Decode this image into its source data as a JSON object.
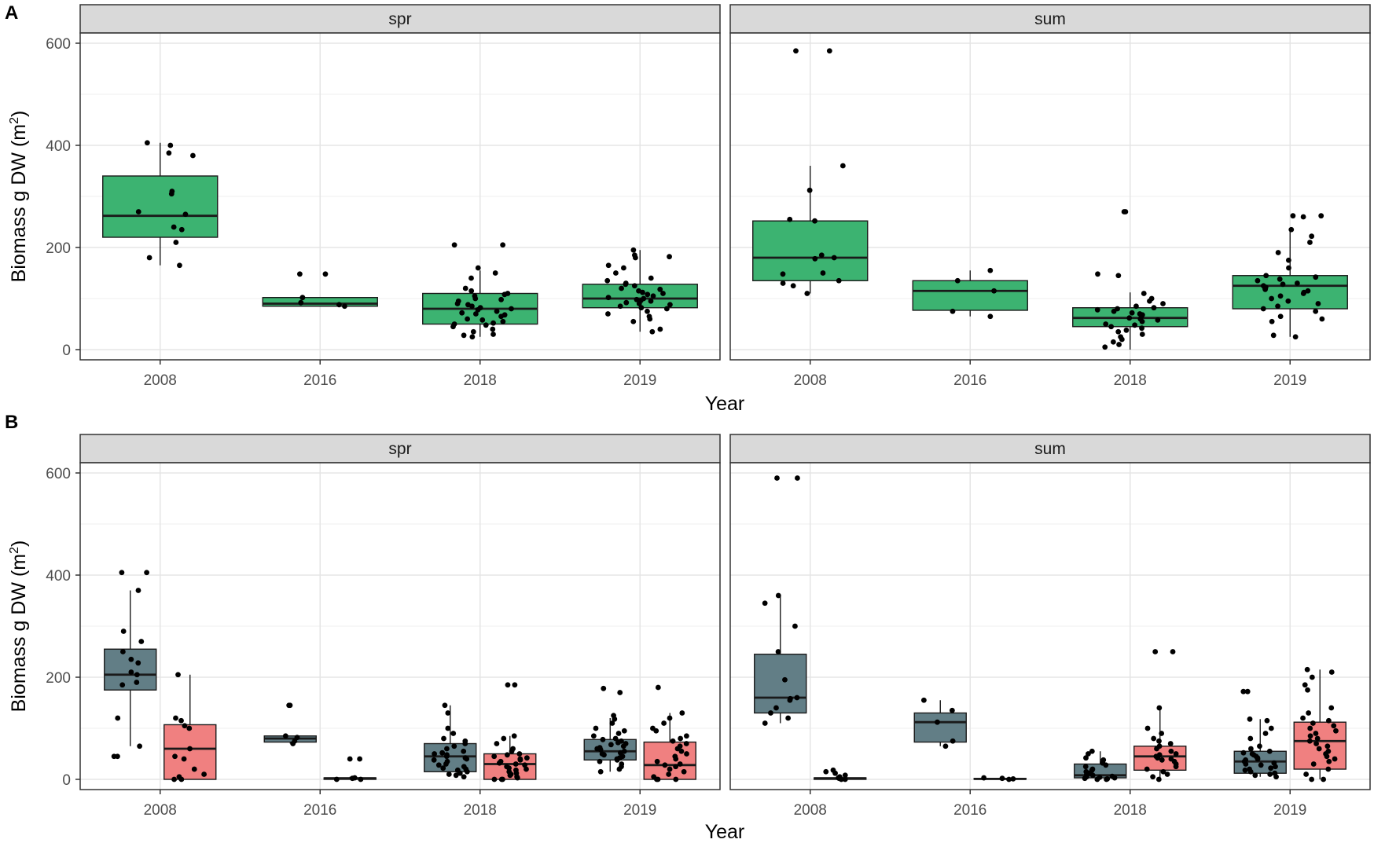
{
  "colors": {
    "total": "#3cb371",
    "group1": "#627e86",
    "group2": "#f08080",
    "grid_major": "#e5e5e5",
    "grid_minor": "#f2f2f2",
    "strip_fill": "#d9d9d9"
  },
  "chart_data": [
    {
      "panel": "A",
      "type": "box",
      "xlabel": "Year",
      "ylabel_main": "Biomass g DW (m",
      "ylabel_sup": "2",
      "ylabel_end": ")",
      "ylim": [
        -20,
        620
      ],
      "yticks": [
        0,
        200,
        400,
        600
      ],
      "categories": [
        "2008",
        "2016",
        "2018",
        "2019"
      ],
      "facets": [
        {
          "label": "spr",
          "groups": [
            {
              "series": "total",
              "boxes": [
                {
                  "x": "2008",
                  "min": 165,
                  "q1": 220,
                  "median": 262,
                  "q3": 340,
                  "max": 405,
                  "points": [
                    400,
                    405,
                    385,
                    380,
                    310,
                    305,
                    270,
                    265,
                    240,
                    235,
                    210,
                    180,
                    165
                  ]
                },
                {
                  "x": "2016",
                  "min": 85,
                  "q1": 85,
                  "median": 90,
                  "q3": 102,
                  "max": 102,
                  "points": [
                    148,
                    148,
                    102,
                    92,
                    88,
                    85
                  ]
                },
                {
                  "x": "2018",
                  "min": 25,
                  "q1": 50,
                  "median": 80,
                  "q3": 110,
                  "max": 155,
                  "points": [
                    205,
                    205,
                    160,
                    150,
                    140,
                    120,
                    115,
                    110,
                    108,
                    105,
                    100,
                    98,
                    95,
                    90,
                    88,
                    85,
                    82,
                    80,
                    78,
                    75,
                    72,
                    70,
                    68,
                    65,
                    60,
                    58,
                    55,
                    52,
                    50,
                    48,
                    45,
                    40,
                    35,
                    30,
                    28,
                    25
                  ]
                },
                {
                  "x": "2019",
                  "min": 35,
                  "q1": 82,
                  "median": 100,
                  "q3": 128,
                  "max": 195,
                  "points": [
                    195,
                    185,
                    182,
                    180,
                    165,
                    160,
                    150,
                    140,
                    135,
                    130,
                    128,
                    125,
                    120,
                    118,
                    115,
                    112,
                    110,
                    108,
                    105,
                    102,
                    100,
                    98,
                    96,
                    95,
                    92,
                    90,
                    88,
                    85,
                    82,
                    80,
                    75,
                    70,
                    65,
                    60,
                    55,
                    40,
                    35
                  ]
                }
              ]
            }
          ]
        },
        {
          "label": "sum",
          "groups": [
            {
              "series": "total",
              "boxes": [
                {
                  "x": "2008",
                  "min": 110,
                  "q1": 135,
                  "median": 180,
                  "q3": 252,
                  "max": 360,
                  "points": [
                    585,
                    585,
                    360,
                    312,
                    255,
                    252,
                    185,
                    180,
                    178,
                    150,
                    148,
                    135,
                    130,
                    125,
                    110
                  ]
                },
                {
                  "x": "2016",
                  "min": 65,
                  "q1": 77,
                  "median": 115,
                  "q3": 135,
                  "max": 155,
                  "points": [
                    155,
                    135,
                    115,
                    75,
                    65
                  ]
                },
                {
                  "x": "2018",
                  "min": 0,
                  "q1": 45,
                  "median": 62,
                  "q3": 82,
                  "max": 112,
                  "points": [
                    270,
                    270,
                    148,
                    145,
                    110,
                    100,
                    95,
                    90,
                    85,
                    82,
                    80,
                    78,
                    75,
                    72,
                    70,
                    68,
                    65,
                    62,
                    60,
                    58,
                    55,
                    50,
                    48,
                    45,
                    42,
                    38,
                    35,
                    30,
                    25,
                    20,
                    15,
                    10,
                    5
                  ]
                },
                {
                  "x": "2019",
                  "min": 25,
                  "q1": 80,
                  "median": 125,
                  "q3": 145,
                  "max": 232,
                  "points": [
                    262,
                    262,
                    260,
                    235,
                    222,
                    210,
                    190,
                    175,
                    160,
                    145,
                    142,
                    138,
                    135,
                    130,
                    128,
                    125,
                    122,
                    120,
                    118,
                    115,
                    112,
                    110,
                    105,
                    100,
                    95,
                    90,
                    85,
                    80,
                    75,
                    65,
                    60,
                    55,
                    28,
                    25
                  ]
                }
              ]
            }
          ]
        }
      ]
    },
    {
      "panel": "B",
      "type": "box",
      "xlabel": "Year",
      "ylabel_main": "Biomass g DW (m",
      "ylabel_sup": "2",
      "ylabel_end": ")",
      "ylim": [
        -20,
        620
      ],
      "yticks": [
        0,
        200,
        400,
        600
      ],
      "categories": [
        "2008",
        "2016",
        "2018",
        "2019"
      ],
      "facets": [
        {
          "label": "spr",
          "groups": [
            {
              "series": "group1",
              "boxes": [
                {
                  "x": "2008",
                  "min": 65,
                  "q1": 175,
                  "median": 205,
                  "q3": 255,
                  "max": 370,
                  "points": [
                    405,
                    405,
                    370,
                    290,
                    270,
                    250,
                    235,
                    228,
                    210,
                    205,
                    190,
                    185,
                    120,
                    65,
                    45,
                    45
                  ]
                },
                {
                  "x": "2016",
                  "min": 70,
                  "q1": 73,
                  "median": 80,
                  "q3": 85,
                  "max": 85,
                  "points": [
                    145,
                    145,
                    85,
                    82,
                    75,
                    70
                  ]
                },
                {
                  "x": "2018",
                  "min": 10,
                  "q1": 15,
                  "median": 45,
                  "q3": 70,
                  "max": 145,
                  "points": [
                    145,
                    130,
                    100,
                    90,
                    80,
                    75,
                    70,
                    65,
                    60,
                    55,
                    52,
                    50,
                    48,
                    45,
                    42,
                    40,
                    38,
                    35,
                    30,
                    28,
                    25,
                    22,
                    20,
                    18,
                    15,
                    12,
                    10,
                    8,
                    5
                  ]
                },
                {
                  "x": "2019",
                  "min": 15,
                  "q1": 38,
                  "median": 55,
                  "q3": 78,
                  "max": 120,
                  "points": [
                    178,
                    170,
                    125,
                    118,
                    110,
                    100,
                    95,
                    90,
                    85,
                    80,
                    78,
                    75,
                    72,
                    70,
                    68,
                    65,
                    62,
                    60,
                    58,
                    55,
                    52,
                    50,
                    48,
                    45,
                    42,
                    40,
                    38,
                    35,
                    30,
                    25,
                    20,
                    15
                  ]
                }
              ]
            },
            {
              "series": "group2",
              "boxes": [
                {
                  "x": "2008",
                  "min": 0,
                  "q1": 0,
                  "median": 60,
                  "q3": 107,
                  "max": 205,
                  "points": [
                    205,
                    120,
                    115,
                    105,
                    100,
                    60,
                    45,
                    40,
                    20,
                    10,
                    5,
                    0,
                    0
                  ]
                },
                {
                  "x": "2016",
                  "min": 0,
                  "q1": 0,
                  "median": 2,
                  "q3": 3,
                  "max": 5,
                  "points": [
                    40,
                    40,
                    3,
                    2,
                    0,
                    0
                  ]
                },
                {
                  "x": "2018",
                  "min": 0,
                  "q1": 0,
                  "median": 30,
                  "q3": 50,
                  "max": 85,
                  "points": [
                    185,
                    185,
                    85,
                    80,
                    70,
                    60,
                    55,
                    50,
                    48,
                    45,
                    42,
                    40,
                    38,
                    35,
                    32,
                    30,
                    28,
                    25,
                    22,
                    20,
                    18,
                    15,
                    12,
                    10,
                    8,
                    5,
                    3,
                    0,
                    0,
                    0
                  ]
                },
                {
                  "x": "2019",
                  "min": 0,
                  "q1": 0,
                  "median": 28,
                  "q3": 73,
                  "max": 130,
                  "points": [
                    180,
                    130,
                    120,
                    110,
                    100,
                    95,
                    85,
                    80,
                    75,
                    70,
                    65,
                    60,
                    55,
                    50,
                    45,
                    40,
                    35,
                    30,
                    28,
                    25,
                    20,
                    15,
                    10,
                    5,
                    0,
                    0,
                    0
                  ]
                }
              ]
            }
          ]
        },
        {
          "label": "sum",
          "groups": [
            {
              "series": "group1",
              "boxes": [
                {
                  "x": "2008",
                  "min": 110,
                  "q1": 130,
                  "median": 160,
                  "q3": 245,
                  "max": 360,
                  "points": [
                    590,
                    590,
                    360,
                    345,
                    300,
                    250,
                    195,
                    160,
                    158,
                    155,
                    140,
                    130,
                    120,
                    110
                  ]
                },
                {
                  "x": "2016",
                  "min": 65,
                  "q1": 73,
                  "median": 112,
                  "q3": 130,
                  "max": 155,
                  "points": [
                    155,
                    135,
                    112,
                    75,
                    65
                  ]
                },
                {
                  "x": "2018",
                  "min": 0,
                  "q1": 3,
                  "median": 8,
                  "q3": 30,
                  "max": 55,
                  "points": [
                    55,
                    50,
                    42,
                    38,
                    32,
                    28,
                    25,
                    20,
                    18,
                    15,
                    12,
                    10,
                    8,
                    6,
                    5,
                    4,
                    3,
                    2,
                    1,
                    0,
                    0
                  ]
                },
                {
                  "x": "2019",
                  "min": 5,
                  "q1": 12,
                  "median": 35,
                  "q3": 55,
                  "max": 118,
                  "points": [
                    172,
                    172,
                    118,
                    115,
                    100,
                    90,
                    80,
                    65,
                    60,
                    55,
                    52,
                    50,
                    48,
                    45,
                    42,
                    40,
                    38,
                    35,
                    32,
                    30,
                    28,
                    25,
                    22,
                    20,
                    18,
                    15,
                    12,
                    10,
                    8,
                    5
                  ]
                }
              ]
            },
            {
              "series": "group2",
              "boxes": [
                {
                  "x": "2008",
                  "min": 0,
                  "q1": 0,
                  "median": 2,
                  "q3": 3,
                  "max": 5,
                  "points": [
                    18,
                    15,
                    12,
                    8,
                    5,
                    3,
                    2,
                    0,
                    0
                  ]
                },
                {
                  "x": "2016",
                  "min": 0,
                  "q1": 0,
                  "median": 1,
                  "q3": 2,
                  "max": 3,
                  "points": [
                    3,
                    2,
                    1,
                    0
                  ]
                },
                {
                  "x": "2018",
                  "min": 0,
                  "q1": 18,
                  "median": 45,
                  "q3": 65,
                  "max": 140,
                  "points": [
                    250,
                    250,
                    140,
                    100,
                    90,
                    80,
                    75,
                    70,
                    65,
                    60,
                    55,
                    50,
                    48,
                    45,
                    42,
                    40,
                    38,
                    35,
                    30,
                    25,
                    20,
                    15,
                    10,
                    5,
                    0
                  ]
                },
                {
                  "x": "2019",
                  "min": 0,
                  "q1": 20,
                  "median": 75,
                  "q3": 112,
                  "max": 215,
                  "points": [
                    215,
                    210,
                    200,
                    185,
                    175,
                    140,
                    130,
                    120,
                    115,
                    110,
                    105,
                    100,
                    95,
                    90,
                    85,
                    80,
                    75,
                    70,
                    65,
                    60,
                    55,
                    50,
                    45,
                    40,
                    35,
                    30,
                    20,
                    10,
                    0,
                    0
                  ]
                }
              ]
            }
          ]
        }
      ]
    }
  ]
}
